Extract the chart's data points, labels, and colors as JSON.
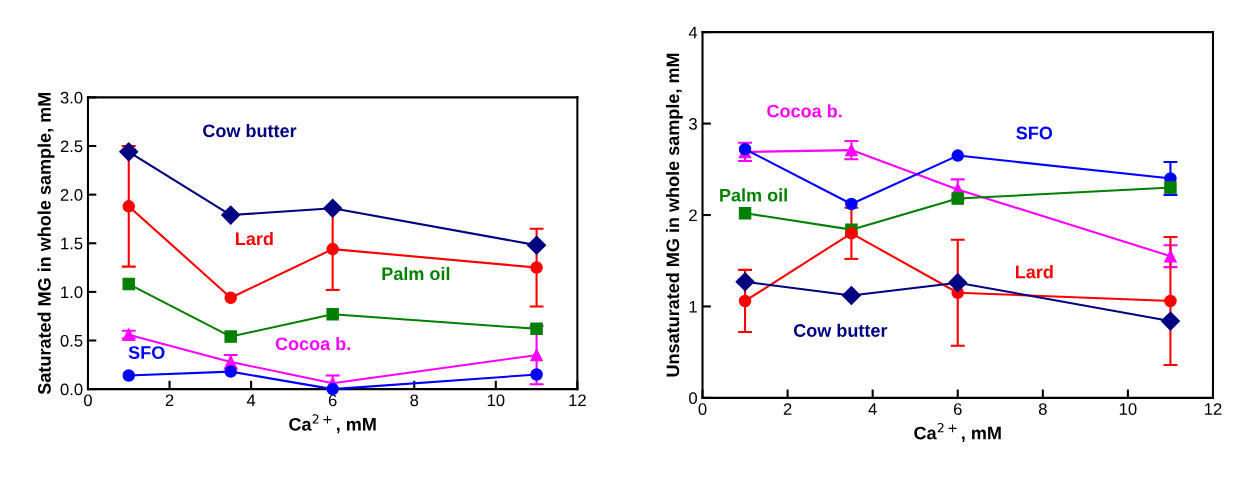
{
  "chart_data": [
    {
      "type": "line",
      "xlabel": "Ca$^{2+}$, mM",
      "ylabel": "Saturated MG in whole sample, mM",
      "x": [
        1,
        3.5,
        6,
        11
      ],
      "xlim": [
        0,
        12
      ],
      "xticks": [
        0,
        2,
        4,
        6,
        8,
        10,
        12
      ],
      "ylim": [
        0,
        3.0
      ],
      "yticks": [
        {
          "value": 0,
          "label": "0.0"
        },
        {
          "value": 0.5,
          "label": "0.5"
        },
        {
          "value": 1.0,
          "label": "1.0"
        },
        {
          "value": 1.5,
          "label": "1.5"
        },
        {
          "value": 2.0,
          "label": "2.0"
        },
        {
          "value": 2.5,
          "label": "2.5"
        },
        {
          "value": 3.0,
          "label": "3.0"
        }
      ],
      "grid": false,
      "legend": false,
      "series": [
        {
          "name": "Cow butter",
          "color": "#000080",
          "marker": "diamond",
          "values": [
            2.44,
            1.79,
            1.86,
            1.48
          ]
        },
        {
          "name": "Lard",
          "color": "#ff0000",
          "marker": "circle",
          "values": [
            1.88,
            0.94,
            1.44,
            1.25
          ],
          "errors": [
            0.62,
            null,
            0.42,
            0.4
          ]
        },
        {
          "name": "Palm oil",
          "color": "#008000",
          "marker": "square",
          "values": [
            1.08,
            0.54,
            0.77,
            0.62
          ]
        },
        {
          "name": "Cocoa b.",
          "color": "#ff00ff",
          "marker": "triangle",
          "values": [
            0.56,
            0.28,
            0.06,
            0.35
          ],
          "errors": [
            0.04,
            0.07,
            0.08,
            0.3
          ]
        },
        {
          "name": "SFO",
          "color": "#0000ff",
          "marker": "circle",
          "values": [
            0.14,
            0.18,
            0.0,
            0.15
          ]
        }
      ]
    },
    {
      "type": "line",
      "xlabel": "Ca$^{2+}$, mM",
      "ylabel": "Unsaturated MG in whole sample, mM",
      "x": [
        1,
        3.5,
        6,
        11
      ],
      "xlim": [
        0,
        12
      ],
      "xticks": [
        0,
        2,
        4,
        6,
        8,
        10,
        12
      ],
      "ylim": [
        0,
        4
      ],
      "yticks": [
        0,
        1,
        2,
        3,
        4
      ],
      "grid": false,
      "legend": false,
      "series": [
        {
          "name": "Cocoa b.",
          "color": "#ff00ff",
          "marker": "triangle",
          "values": [
            2.69,
            2.71,
            2.28,
            1.55
          ],
          "errors": [
            0.1,
            0.1,
            0.11,
            0.12
          ]
        },
        {
          "name": "SFO",
          "color": "#0000ff",
          "marker": "circle",
          "values": [
            2.72,
            2.12,
            2.65,
            2.4
          ],
          "errors": [
            null,
            null,
            null,
            0.18
          ]
        },
        {
          "name": "Palm oil",
          "color": "#008000",
          "marker": "square",
          "values": [
            2.02,
            1.84,
            2.18,
            2.3
          ]
        },
        {
          "name": "Lard",
          "color": "#ff0000",
          "marker": "circle",
          "values": [
            1.06,
            1.8,
            1.15,
            1.06
          ],
          "errors": [
            0.34,
            0.28,
            0.58,
            0.7
          ]
        },
        {
          "name": "Cow butter",
          "color": "#000080",
          "marker": "diamond",
          "values": [
            1.27,
            1.12,
            1.26,
            0.84
          ]
        }
      ]
    }
  ]
}
